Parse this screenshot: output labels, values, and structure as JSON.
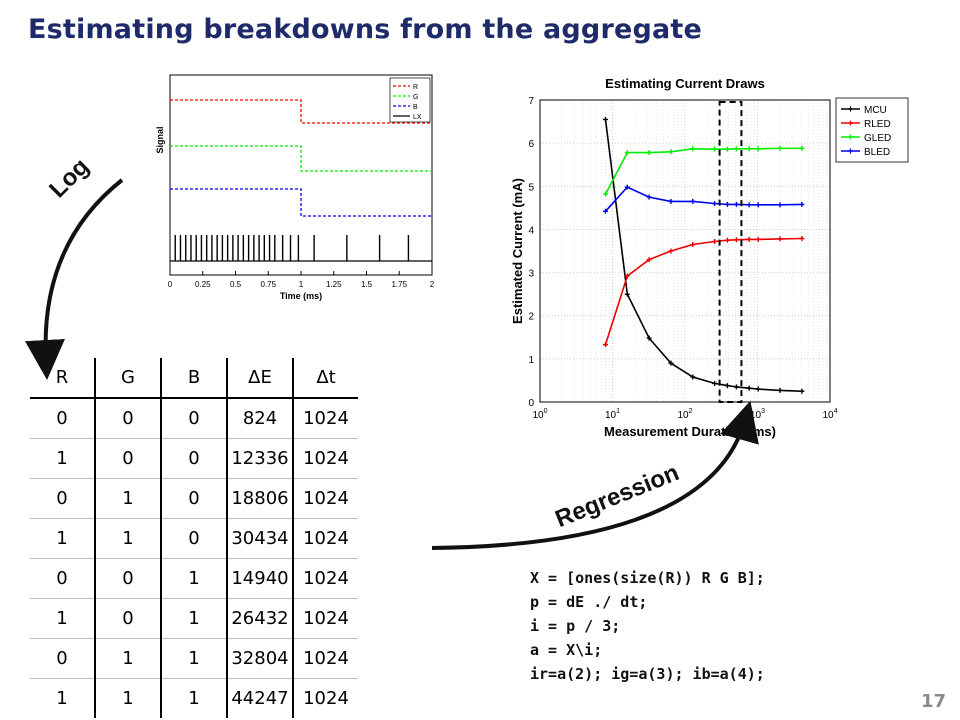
{
  "slide": {
    "title": "Estimating breakdowns from the aggregate",
    "page_number": "17",
    "log_label": "Log",
    "regression_label": "Regression"
  },
  "code_lines": [
    "X = [ones(size(R)) R G B];",
    "p = dE ./ dt;",
    "i = p / 3;",
    "a = X\\i;",
    "ir=a(2); ig=a(3); ib=a(4);"
  ],
  "table": {
    "headers": [
      "R",
      "G",
      "B",
      "ΔE",
      "Δt"
    ],
    "rows": [
      [
        "0",
        "0",
        "0",
        "824",
        "1024"
      ],
      [
        "1",
        "0",
        "0",
        "12336",
        "1024"
      ],
      [
        "0",
        "1",
        "0",
        "18806",
        "1024"
      ],
      [
        "1",
        "1",
        "0",
        "30434",
        "1024"
      ],
      [
        "0",
        "0",
        "1",
        "14940",
        "1024"
      ],
      [
        "1",
        "0",
        "1",
        "26432",
        "1024"
      ],
      [
        "0",
        "1",
        "1",
        "32804",
        "1024"
      ],
      [
        "1",
        "1",
        "1",
        "44247",
        "1024"
      ]
    ]
  },
  "chart_data": [
    {
      "type": "line",
      "title": "",
      "xlabel": "Time (ms)",
      "ylabel": "Signal",
      "xlim": [
        0,
        2
      ],
      "xticks": [
        "0",
        "0.25",
        "0.5",
        "0.75",
        "1",
        "1.25",
        "1.5",
        "1.75",
        "2"
      ],
      "legend": {
        "position": "top-right",
        "entries": [
          "R",
          "G",
          "B",
          "LX"
        ]
      },
      "series": [
        {
          "name": "R",
          "color": "#ff0000",
          "style": "dashed",
          "x": [
            0,
            1,
            1,
            2
          ],
          "y": [
            1,
            1,
            0,
            0
          ]
        },
        {
          "name": "G",
          "color": "#00ee00",
          "style": "dashed",
          "x": [
            0,
            1,
            1,
            2
          ],
          "y": [
            1,
            1,
            0,
            0
          ]
        },
        {
          "name": "B",
          "color": "#0000ff",
          "style": "dashed",
          "x": [
            0,
            1,
            1,
            2
          ],
          "y": [
            1,
            1,
            0,
            0
          ]
        }
      ],
      "pulses": {
        "name": "LX",
        "color": "#000000",
        "x": [
          0.04,
          0.08,
          0.12,
          0.16,
          0.2,
          0.24,
          0.28,
          0.32,
          0.36,
          0.4,
          0.44,
          0.48,
          0.52,
          0.56,
          0.6,
          0.64,
          0.68,
          0.72,
          0.76,
          0.8,
          0.86,
          0.92,
          0.98,
          1.1,
          1.35,
          1.6,
          1.82
        ]
      }
    },
    {
      "type": "line",
      "title": "Estimating Current Draws",
      "xlabel": "Measurement Duration (ms)",
      "ylabel": "Estimated Current (mA)",
      "xscale": "log",
      "xlim": [
        1,
        10000
      ],
      "ylim": [
        0,
        7
      ],
      "yticks": [
        0,
        1,
        2,
        3,
        4,
        5,
        6,
        7
      ],
      "xticks": [
        {
          "value": 1,
          "base": "10",
          "exp": "0"
        },
        {
          "value": 10,
          "base": "10",
          "exp": "1"
        },
        {
          "value": 100,
          "base": "10",
          "exp": "2"
        },
        {
          "value": 1000,
          "base": "10",
          "exp": "3"
        },
        {
          "value": 10000,
          "base": "10",
          "exp": "4"
        }
      ],
      "grid": true,
      "legend": {
        "position": "top-right",
        "entries": [
          "MCU",
          "RLED",
          "GLED",
          "BLED"
        ]
      },
      "highlight_x_range": [
        300,
        600
      ],
      "series": [
        {
          "name": "MCU",
          "color": "#000000",
          "x": [
            8,
            16,
            32,
            64,
            128,
            256,
            384,
            512,
            768,
            1024,
            2048,
            4096
          ],
          "y": [
            6.55,
            2.5,
            1.48,
            0.9,
            0.58,
            0.43,
            0.38,
            0.35,
            0.32,
            0.3,
            0.27,
            0.25
          ]
        },
        {
          "name": "RLED",
          "color": "#ee0000",
          "x": [
            8,
            16,
            32,
            64,
            128,
            256,
            384,
            512,
            768,
            1024,
            2048,
            4096
          ],
          "y": [
            1.33,
            2.92,
            3.3,
            3.5,
            3.65,
            3.72,
            3.75,
            3.76,
            3.77,
            3.77,
            3.78,
            3.79
          ]
        },
        {
          "name": "GLED",
          "color": "#00ee00",
          "x": [
            8,
            16,
            32,
            64,
            128,
            256,
            384,
            512,
            768,
            1024,
            2048,
            4096
          ],
          "y": [
            4.82,
            5.78,
            5.78,
            5.8,
            5.87,
            5.86,
            5.86,
            5.87,
            5.87,
            5.87,
            5.88,
            5.88
          ]
        },
        {
          "name": "BLED",
          "color": "#0000ee",
          "x": [
            8,
            16,
            32,
            64,
            128,
            256,
            384,
            512,
            768,
            1024,
            2048,
            4096
          ],
          "y": [
            4.42,
            4.98,
            4.75,
            4.65,
            4.65,
            4.6,
            4.58,
            4.58,
            4.57,
            4.57,
            4.57,
            4.58
          ]
        }
      ]
    }
  ]
}
